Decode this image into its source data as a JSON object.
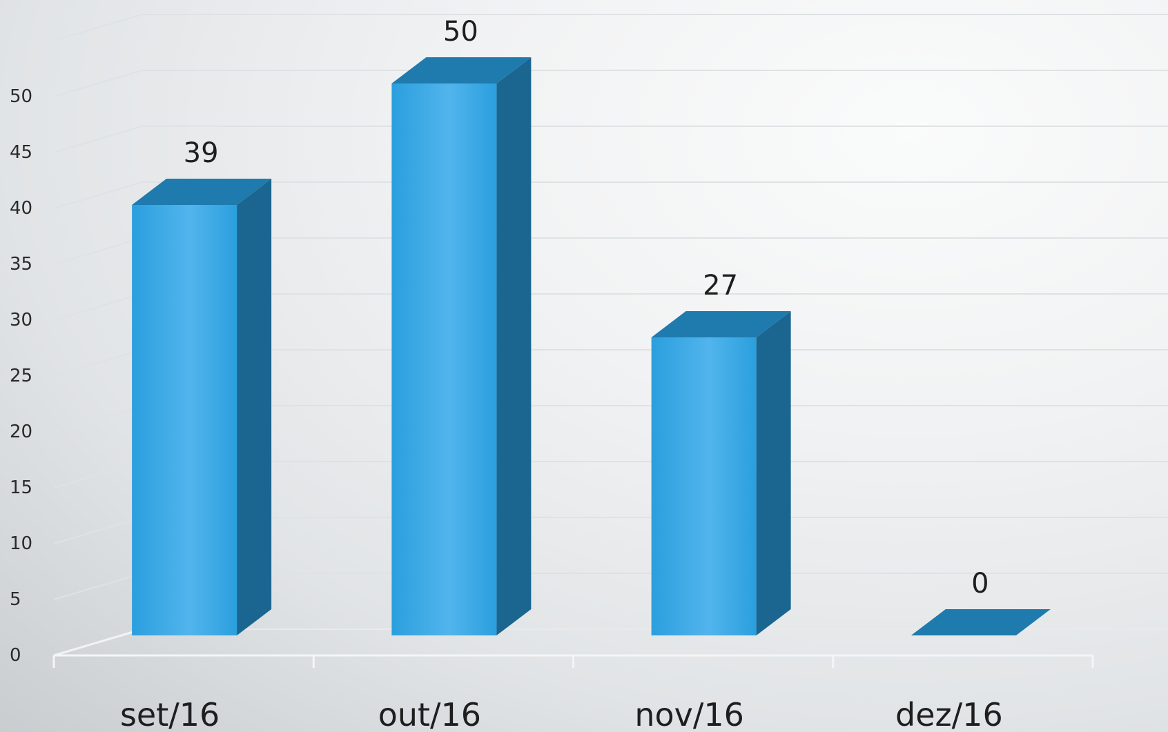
{
  "chart_data": {
    "type": "bar",
    "style": "3d-column",
    "categories": [
      "set/16",
      "out/16",
      "nov/16",
      "dez/16"
    ],
    "values": [
      39,
      50,
      27,
      0
    ],
    "data_labels": [
      "39",
      "50",
      "27",
      "0"
    ],
    "y_ticks": [
      "0",
      "5",
      "10",
      "15",
      "20",
      "25",
      "30",
      "35",
      "40",
      "45",
      "50"
    ],
    "ylim": [
      0,
      55
    ],
    "title": "",
    "xlabel": "",
    "ylabel": "",
    "grid": true,
    "legend": "none",
    "colors": {
      "bar_front": "#2a9fde",
      "bar_front_light": "#52b4ec",
      "bar_side": "#1b6690",
      "bar_top": "#1f7aad",
      "gridline": "#dfe2e4",
      "text": "#1e1e1e"
    }
  }
}
